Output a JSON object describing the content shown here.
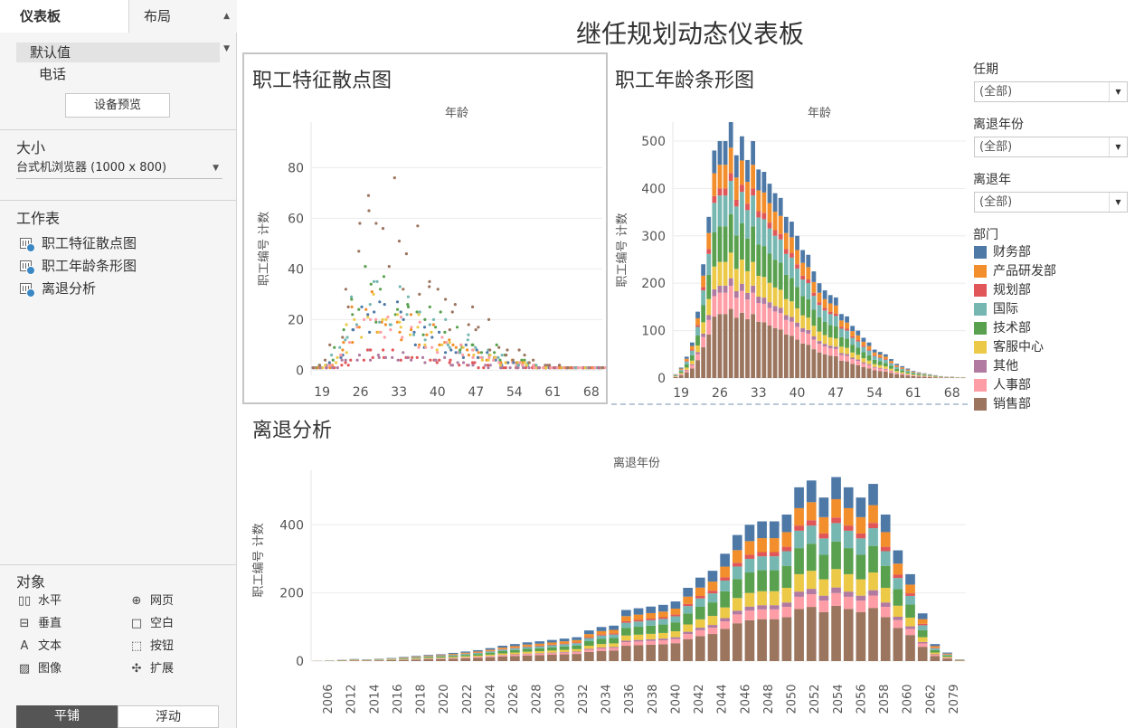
{
  "sidebar": {
    "tabs": {
      "dashboard": "仪表板",
      "layout": "布局"
    },
    "devices": {
      "default": "默认值",
      "phone": "电话"
    },
    "preview_button": "设备预览",
    "size": {
      "heading": "大小",
      "selected": "台式机浏览器 (1000 x 800)"
    },
    "worksheets": {
      "heading": "工作表",
      "items": [
        "职工特征散点图",
        "职工年龄条形图",
        "离退分析"
      ]
    },
    "objects": {
      "heading": "对象",
      "items": [
        {
          "label": "水平",
          "icon": "horizontal-container-icon"
        },
        {
          "label": "网页",
          "icon": "globe-icon"
        },
        {
          "label": "垂直",
          "icon": "vertical-container-icon"
        },
        {
          "label": "空白",
          "icon": "blank-icon"
        },
        {
          "label": "文本",
          "icon": "text-icon"
        },
        {
          "label": "按钮",
          "icon": "button-icon"
        },
        {
          "label": "图像",
          "icon": "image-icon"
        },
        {
          "label": "扩展",
          "icon": "extension-icon"
        }
      ]
    },
    "modes": {
      "tiled": "平铺",
      "floating": "浮动"
    }
  },
  "dashboard": {
    "title": "继任规划动态仪表板",
    "panels": {
      "scatter": "职工特征散点图",
      "bar": "职工年龄条形图",
      "retire": "离退分析"
    }
  },
  "filters": [
    {
      "label": "任期",
      "value": "(全部)"
    },
    {
      "label": "离退年份",
      "value": "(全部)"
    },
    {
      "label": "离退年",
      "value": "(全部)"
    }
  ],
  "legend": {
    "title": "部门",
    "items": [
      {
        "label": "财务部",
        "color": "#4e79a7"
      },
      {
        "label": "产品研发部",
        "color": "#f28e2b"
      },
      {
        "label": "规划部",
        "color": "#e15759"
      },
      {
        "label": "国际",
        "color": "#76b7b2"
      },
      {
        "label": "技术部",
        "color": "#59a14f"
      },
      {
        "label": "客服中心",
        "color": "#edc948"
      },
      {
        "label": "其他",
        "color": "#b07aa1"
      },
      {
        "label": "人事部",
        "color": "#ff9da7"
      },
      {
        "label": "销售部",
        "color": "#9c755f"
      }
    ]
  },
  "chart_data": [
    {
      "type": "scatter",
      "title": "职工特征散点图",
      "xlabel": "年龄",
      "ylabel": "职工编号 计数",
      "xlim": [
        17,
        70
      ],
      "ylim": [
        -2,
        98
      ],
      "xticks": [
        19,
        26,
        33,
        40,
        47,
        54,
        61,
        68
      ],
      "yticks": [
        0,
        20,
        40,
        60,
        80
      ],
      "note_series": [
        "财务部",
        "产品研发部",
        "规划部",
        "国际",
        "技术部",
        "客服中心",
        "其他",
        "人事部",
        "销售部"
      ]
    },
    {
      "type": "bar",
      "stacked": true,
      "title": "职工年龄条形图",
      "xlabel": "年龄",
      "ylabel": "职工编号 计数",
      "ylim": [
        0,
        540
      ],
      "xticks": [
        19,
        26,
        33,
        40,
        47,
        54,
        61,
        68
      ],
      "yticks": [
        0,
        100,
        200,
        300,
        400,
        500
      ],
      "x": [
        18,
        19,
        20,
        21,
        22,
        23,
        24,
        25,
        26,
        27,
        28,
        29,
        30,
        31,
        32,
        33,
        34,
        35,
        36,
        37,
        38,
        39,
        40,
        41,
        42,
        43,
        44,
        45,
        46,
        47,
        48,
        49,
        50,
        51,
        52,
        53,
        54,
        55,
        56,
        57,
        58,
        59,
        60,
        61,
        62,
        63,
        64,
        65,
        66,
        67,
        68,
        69,
        70
      ],
      "totals": [
        8,
        22,
        45,
        75,
        140,
        240,
        340,
        480,
        500,
        500,
        540,
        470,
        510,
        460,
        500,
        440,
        435,
        410,
        390,
        380,
        340,
        330,
        300,
        270,
        260,
        225,
        200,
        185,
        175,
        170,
        135,
        130,
        110,
        100,
        85,
        75,
        60,
        55,
        50,
        40,
        30,
        25,
        20,
        15,
        12,
        10,
        8,
        6,
        4,
        3,
        3,
        2,
        2
      ],
      "department_shares": {
        "财务部": 0.1,
        "产品研发部": 0.1,
        "规划部": 0.03,
        "国际": 0.13,
        "技术部": 0.15,
        "客服中心": 0.1,
        "其他": 0.03,
        "人事部": 0.09,
        "销售部": 0.27
      }
    },
    {
      "type": "bar",
      "stacked": true,
      "title": "离退分析",
      "xlabel": "离退年份",
      "ylabel": "职工编号 计数",
      "ylim": [
        0,
        560
      ],
      "xtick_labels": [
        "2006",
        "2012",
        "2014",
        "2016",
        "2018",
        "2020",
        "2022",
        "2024",
        "2026",
        "2028",
        "2030",
        "2032",
        "2034",
        "2036",
        "2038",
        "2040",
        "2042",
        "2044",
        "2046",
        "2048",
        "2050",
        "2052",
        "2054",
        "2056",
        "2058",
        "2060",
        "2062",
        "2079"
      ],
      "yticks": [
        0,
        200,
        400
      ],
      "x": [
        "2010",
        "2011",
        "2012",
        "2013",
        "2014",
        "2015",
        "2016",
        "2017",
        "2018",
        "2019",
        "2020",
        "2021",
        "2022",
        "2023",
        "2024",
        "2025",
        "2026",
        "2027",
        "2028",
        "2029",
        "2030",
        "2031",
        "2032",
        "2033",
        "2034",
        "2035",
        "2036",
        "2037",
        "2038",
        "2039",
        "2040",
        "2041",
        "2042",
        "2043",
        "2044",
        "2045",
        "2046",
        "2047",
        "2048",
        "2049",
        "2050",
        "2051",
        "2052",
        "2053",
        "2054",
        "2055",
        "2056",
        "2057",
        "2058",
        "2059",
        "2060",
        "2061",
        "2062"
      ],
      "totals": [
        1,
        2,
        4,
        6,
        5,
        7,
        9,
        12,
        15,
        18,
        20,
        24,
        28,
        32,
        38,
        45,
        50,
        55,
        58,
        62,
        66,
        70,
        90,
        100,
        104,
        150,
        155,
        160,
        165,
        175,
        215,
        245,
        265,
        315,
        370,
        400,
        410,
        410,
        430,
        510,
        530,
        480,
        540,
        510,
        480,
        520,
        430,
        325,
        255,
        140,
        50,
        25,
        5
      ],
      "department_shares": {
        "财务部": 0.12,
        "产品研发部": 0.1,
        "规划部": 0.03,
        "国际": 0.1,
        "技术部": 0.15,
        "客服中心": 0.1,
        "其他": 0.03,
        "人事部": 0.07,
        "销售部": 0.3
      }
    }
  ]
}
